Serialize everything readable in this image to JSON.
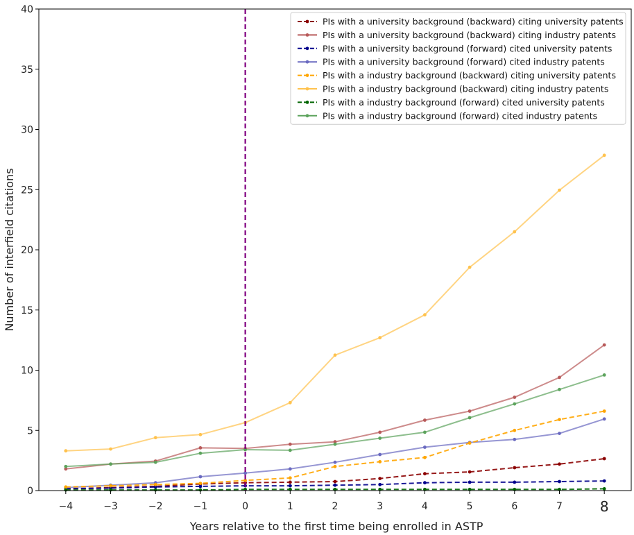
{
  "chart_data": {
    "type": "line",
    "xlabel": "Years relative to the first time being enrolled in ASTP",
    "ylabel": "Number of interfield citations",
    "x": [
      -4,
      -3,
      -2,
      -1,
      0,
      1,
      2,
      3,
      4,
      5,
      6,
      7,
      8
    ],
    "x_tick_labels": [
      "−4",
      "−3",
      "−2",
      "−1",
      "0",
      "1",
      "2",
      "3",
      "4",
      "5",
      "6",
      "7",
      "8"
    ],
    "xlim": [
      -4.6,
      8.6
    ],
    "ylim": [
      0,
      40
    ],
    "y_ticks": [
      0,
      5,
      10,
      15,
      20,
      25,
      30,
      35,
      40
    ],
    "vline": {
      "x": 0,
      "color": "#800080",
      "style": "dashed"
    },
    "legend_position": "top-right",
    "grid": false,
    "series": [
      {
        "name": "PIs with a university background (backward) citing university patents",
        "color": "#8b0000",
        "style": "dashed",
        "values": [
          0.15,
          0.25,
          0.35,
          0.55,
          0.65,
          0.7,
          0.75,
          1.0,
          1.4,
          1.55,
          1.9,
          2.2,
          2.65
        ]
      },
      {
        "name": "PIs with a university background (backward) citing industry patents",
        "color": "#b85a5a",
        "style": "solid",
        "values": [
          1.8,
          2.2,
          2.45,
          3.55,
          3.5,
          3.85,
          4.05,
          4.85,
          5.85,
          6.6,
          7.75,
          9.4,
          12.1
        ]
      },
      {
        "name": "PIs with a university background (forward) cited university patents",
        "color": "#00008b",
        "style": "dashed",
        "values": [
          0.15,
          0.2,
          0.3,
          0.35,
          0.4,
          0.4,
          0.45,
          0.5,
          0.65,
          0.7,
          0.7,
          0.75,
          0.8
        ]
      },
      {
        "name": "PIs with a university background (forward) cited industry patents",
        "color": "#6a6ac0",
        "style": "solid",
        "values": [
          0.25,
          0.45,
          0.65,
          1.15,
          1.45,
          1.8,
          2.35,
          3.0,
          3.6,
          4.0,
          4.25,
          4.75,
          5.95
        ]
      },
      {
        "name": "PIs with a industry background (backward) citing university patents",
        "color": "#ffa500",
        "style": "dashed",
        "values": [
          0.3,
          0.4,
          0.5,
          0.6,
          0.85,
          1.05,
          2.0,
          2.4,
          2.75,
          3.95,
          5.0,
          5.9,
          6.6
        ]
      },
      {
        "name": "PIs with a industry background (backward) citing industry patents",
        "color": "#ffc24d",
        "style": "solid",
        "values": [
          3.3,
          3.45,
          4.4,
          4.65,
          5.65,
          7.3,
          11.25,
          12.7,
          14.6,
          18.55,
          21.5,
          24.95,
          27.85
        ]
      },
      {
        "name": "PIs with a industry background (forward) cited university patents",
        "color": "#006400",
        "style": "dashed",
        "values": [
          0.05,
          0.05,
          0.05,
          0.05,
          0.1,
          0.1,
          0.1,
          0.1,
          0.1,
          0.1,
          0.1,
          0.1,
          0.15
        ]
      },
      {
        "name": "PIs with a industry background (forward) cited industry patents",
        "color": "#5ca35c",
        "style": "solid",
        "values": [
          2.0,
          2.2,
          2.35,
          3.1,
          3.4,
          3.35,
          3.85,
          4.35,
          4.85,
          6.05,
          7.2,
          8.4,
          9.6
        ]
      }
    ]
  }
}
